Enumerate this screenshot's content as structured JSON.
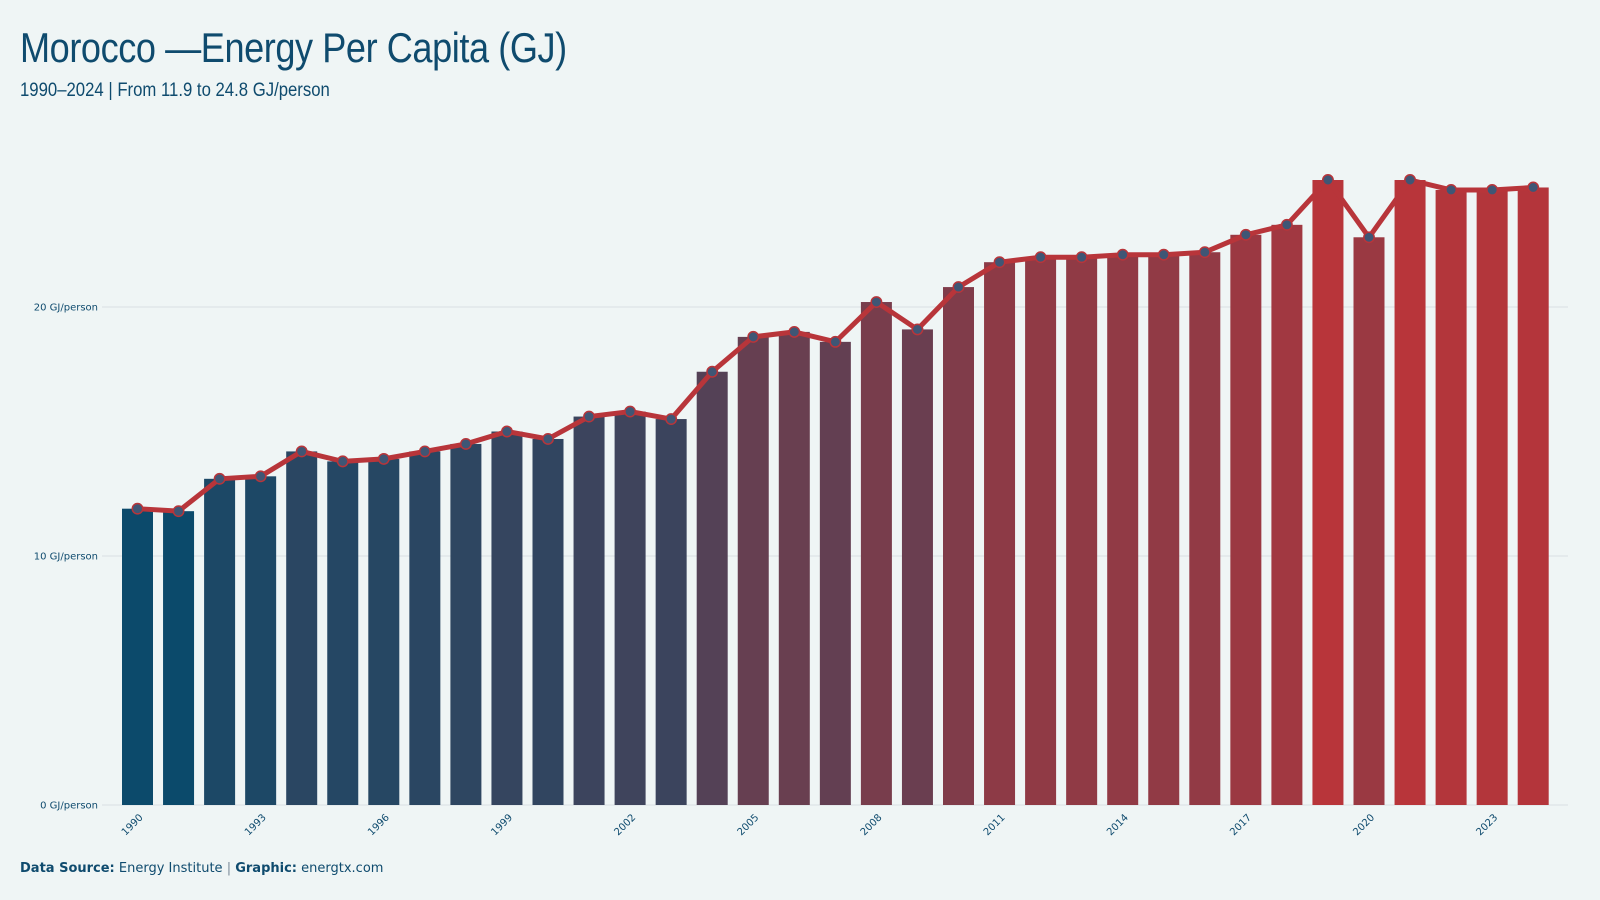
{
  "header": {
    "title": "Morocco —Energy Per Capita (GJ)",
    "subtitle": "1990–2024 | From 11.9 to 24.8 GJ/person"
  },
  "footer": {
    "source_label": "Data Source:",
    "source_value": "Energy Institute",
    "separator": "|",
    "graphic_label": "Graphic:",
    "graphic_value": "energtx.com"
  },
  "colors": {
    "background": "#eff5f5",
    "bar_start": "#0b4a6b",
    "bar_end": "#b8353a",
    "line": "#b8353a",
    "marker_fill": "#3f5675",
    "gridline": "#dde3e6",
    "text": "#0f4b6e"
  },
  "chart_data": {
    "type": "bar",
    "title": "Morocco —Energy Per Capita (GJ)",
    "subtitle": "1990–2024 | From 11.9 to 24.8 GJ/person",
    "x": [
      1990,
      1991,
      1992,
      1993,
      1994,
      1995,
      1996,
      1997,
      1998,
      1999,
      2000,
      2001,
      2002,
      2003,
      2004,
      2005,
      2006,
      2007,
      2008,
      2009,
      2010,
      2011,
      2012,
      2013,
      2014,
      2015,
      2016,
      2017,
      2018,
      2019,
      2020,
      2021,
      2022,
      2023,
      2024
    ],
    "x_tick_labels": [
      "1990",
      "1993",
      "1996",
      "1999",
      "2002",
      "2005",
      "2008",
      "2011",
      "2014",
      "2017",
      "2020",
      "2023"
    ],
    "series": [
      {
        "values": [
          11.9,
          11.8,
          13.1,
          13.2,
          14.2,
          13.8,
          13.9,
          14.2,
          14.5,
          15.0,
          14.7,
          15.6,
          15.8,
          15.5,
          17.4,
          18.8,
          19.0,
          18.6,
          20.2,
          19.1,
          20.8,
          21.8,
          22.0,
          22.0,
          22.1,
          22.1,
          22.2,
          22.9,
          23.3,
          25.1,
          22.8,
          25.1,
          24.7,
          24.7,
          24.8
        ]
      }
    ],
    "overlay": "line with circle markers on bar tops",
    "ylabel": "",
    "xlabel": "",
    "y_ticks": [
      0,
      10,
      20
    ],
    "y_tick_labels": [
      "0 GJ/person",
      "10 GJ/person",
      "20 GJ/person"
    ],
    "ylim": [
      0,
      26.7
    ],
    "grid": "horizontal",
    "legend": "none"
  }
}
